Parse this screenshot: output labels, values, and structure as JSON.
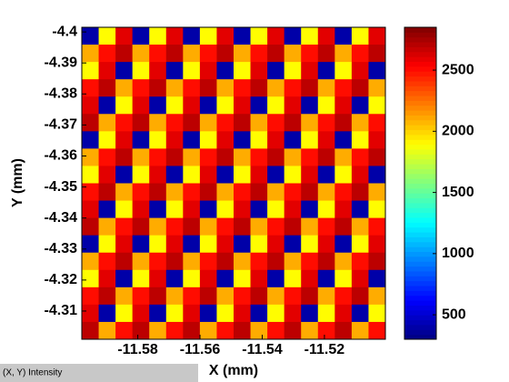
{
  "chart_data": {
    "type": "heatmap",
    "xlabel": "X (mm)",
    "ylabel": "Y (mm)",
    "status_text": "(X, Y)  Intensity",
    "xlim": [
      -11.598,
      -11.5004
    ],
    "xticks": [
      -11.58,
      -11.56,
      -11.54,
      -11.52
    ],
    "ylim": [
      -4.4015,
      -4.3009
    ],
    "yticks": [
      -4.4,
      -4.39,
      -4.38,
      -4.37,
      -4.36,
      -4.35,
      -4.34,
      -4.33,
      -4.32,
      -4.31
    ],
    "colormap": "jet",
    "clim": [
      300,
      2850
    ],
    "cticks": [
      500,
      1000,
      1500,
      2000,
      2500
    ],
    "z": [
      [
        400,
        1900,
        2600,
        400,
        1900,
        2600,
        400,
        1900,
        2600,
        400,
        1900,
        2600,
        400,
        1900,
        2600,
        400,
        1900,
        2600
      ],
      [
        2100,
        2500,
        2700,
        2100,
        2500,
        2700,
        2100,
        2500,
        2700,
        2100,
        2500,
        2700,
        2100,
        2500,
        2700,
        2100,
        2500,
        2700
      ],
      [
        1900,
        2600,
        400,
        1900,
        2600,
        400,
        1900,
        2600,
        400,
        1900,
        2600,
        400,
        1900,
        2600,
        400,
        1900,
        2600,
        400
      ],
      [
        2500,
        2700,
        2100,
        2500,
        2700,
        2100,
        2500,
        2700,
        2100,
        2500,
        2700,
        2100,
        2500,
        2700,
        2100,
        2500,
        2700,
        2100
      ],
      [
        2600,
        400,
        1900,
        2600,
        400,
        1900,
        2600,
        400,
        1900,
        2600,
        400,
        1900,
        2600,
        400,
        1900,
        2600,
        400,
        1900
      ],
      [
        2700,
        2100,
        2500,
        2700,
        2100,
        2500,
        2700,
        2100,
        2500,
        2700,
        2100,
        2500,
        2700,
        2100,
        2500,
        2700,
        2100,
        2500
      ],
      [
        400,
        1900,
        2600,
        400,
        1900,
        2600,
        400,
        1900,
        2600,
        400,
        1900,
        2600,
        400,
        1900,
        2600,
        400,
        1900,
        2600
      ],
      [
        2100,
        2500,
        2700,
        2100,
        2500,
        2700,
        2100,
        2500,
        2700,
        2100,
        2500,
        2700,
        2100,
        2500,
        2700,
        2100,
        2500,
        2700
      ],
      [
        1900,
        2600,
        400,
        1900,
        2600,
        400,
        1900,
        2600,
        400,
        1900,
        2600,
        400,
        1900,
        2600,
        400,
        1900,
        2600,
        400
      ],
      [
        2500,
        2700,
        2100,
        2500,
        2700,
        2100,
        2500,
        2700,
        2100,
        2500,
        2700,
        2100,
        2500,
        2700,
        2100,
        2500,
        2700,
        2100
      ],
      [
        2600,
        400,
        1900,
        2600,
        400,
        1900,
        2600,
        400,
        1900,
        2600,
        400,
        1900,
        2600,
        400,
        1900,
        2600,
        400,
        1900
      ],
      [
        2700,
        2100,
        2500,
        2700,
        2100,
        2500,
        2700,
        2100,
        2500,
        2700,
        2100,
        2500,
        2700,
        2100,
        2500,
        2700,
        2100,
        2500
      ],
      [
        400,
        1900,
        2600,
        400,
        1900,
        2600,
        400,
        1900,
        2600,
        400,
        1900,
        2600,
        400,
        1900,
        2600,
        400,
        1900,
        2600
      ],
      [
        2100,
        2500,
        2700,
        2100,
        2500,
        2700,
        2100,
        2500,
        2700,
        2100,
        2500,
        2700,
        2100,
        2500,
        2700,
        2100,
        2500,
        2700
      ],
      [
        1900,
        2600,
        400,
        1900,
        2600,
        400,
        1900,
        2600,
        400,
        1900,
        2600,
        400,
        1900,
        2600,
        400,
        1900,
        2600,
        400
      ],
      [
        2500,
        2700,
        2100,
        2500,
        2700,
        2100,
        2500,
        2700,
        2100,
        2500,
        2700,
        2100,
        2500,
        2700,
        2100,
        2500,
        2700,
        2100
      ],
      [
        2600,
        400,
        1900,
        2600,
        400,
        1900,
        2600,
        400,
        1900,
        2600,
        400,
        1900,
        2600,
        400,
        1900,
        2600,
        400,
        1900
      ],
      [
        2700,
        2100,
        2500,
        2700,
        2100,
        2500,
        2700,
        2100,
        2500,
        2700,
        2100,
        2500,
        2700,
        2100,
        2500,
        2700,
        2100,
        2500
      ]
    ]
  }
}
